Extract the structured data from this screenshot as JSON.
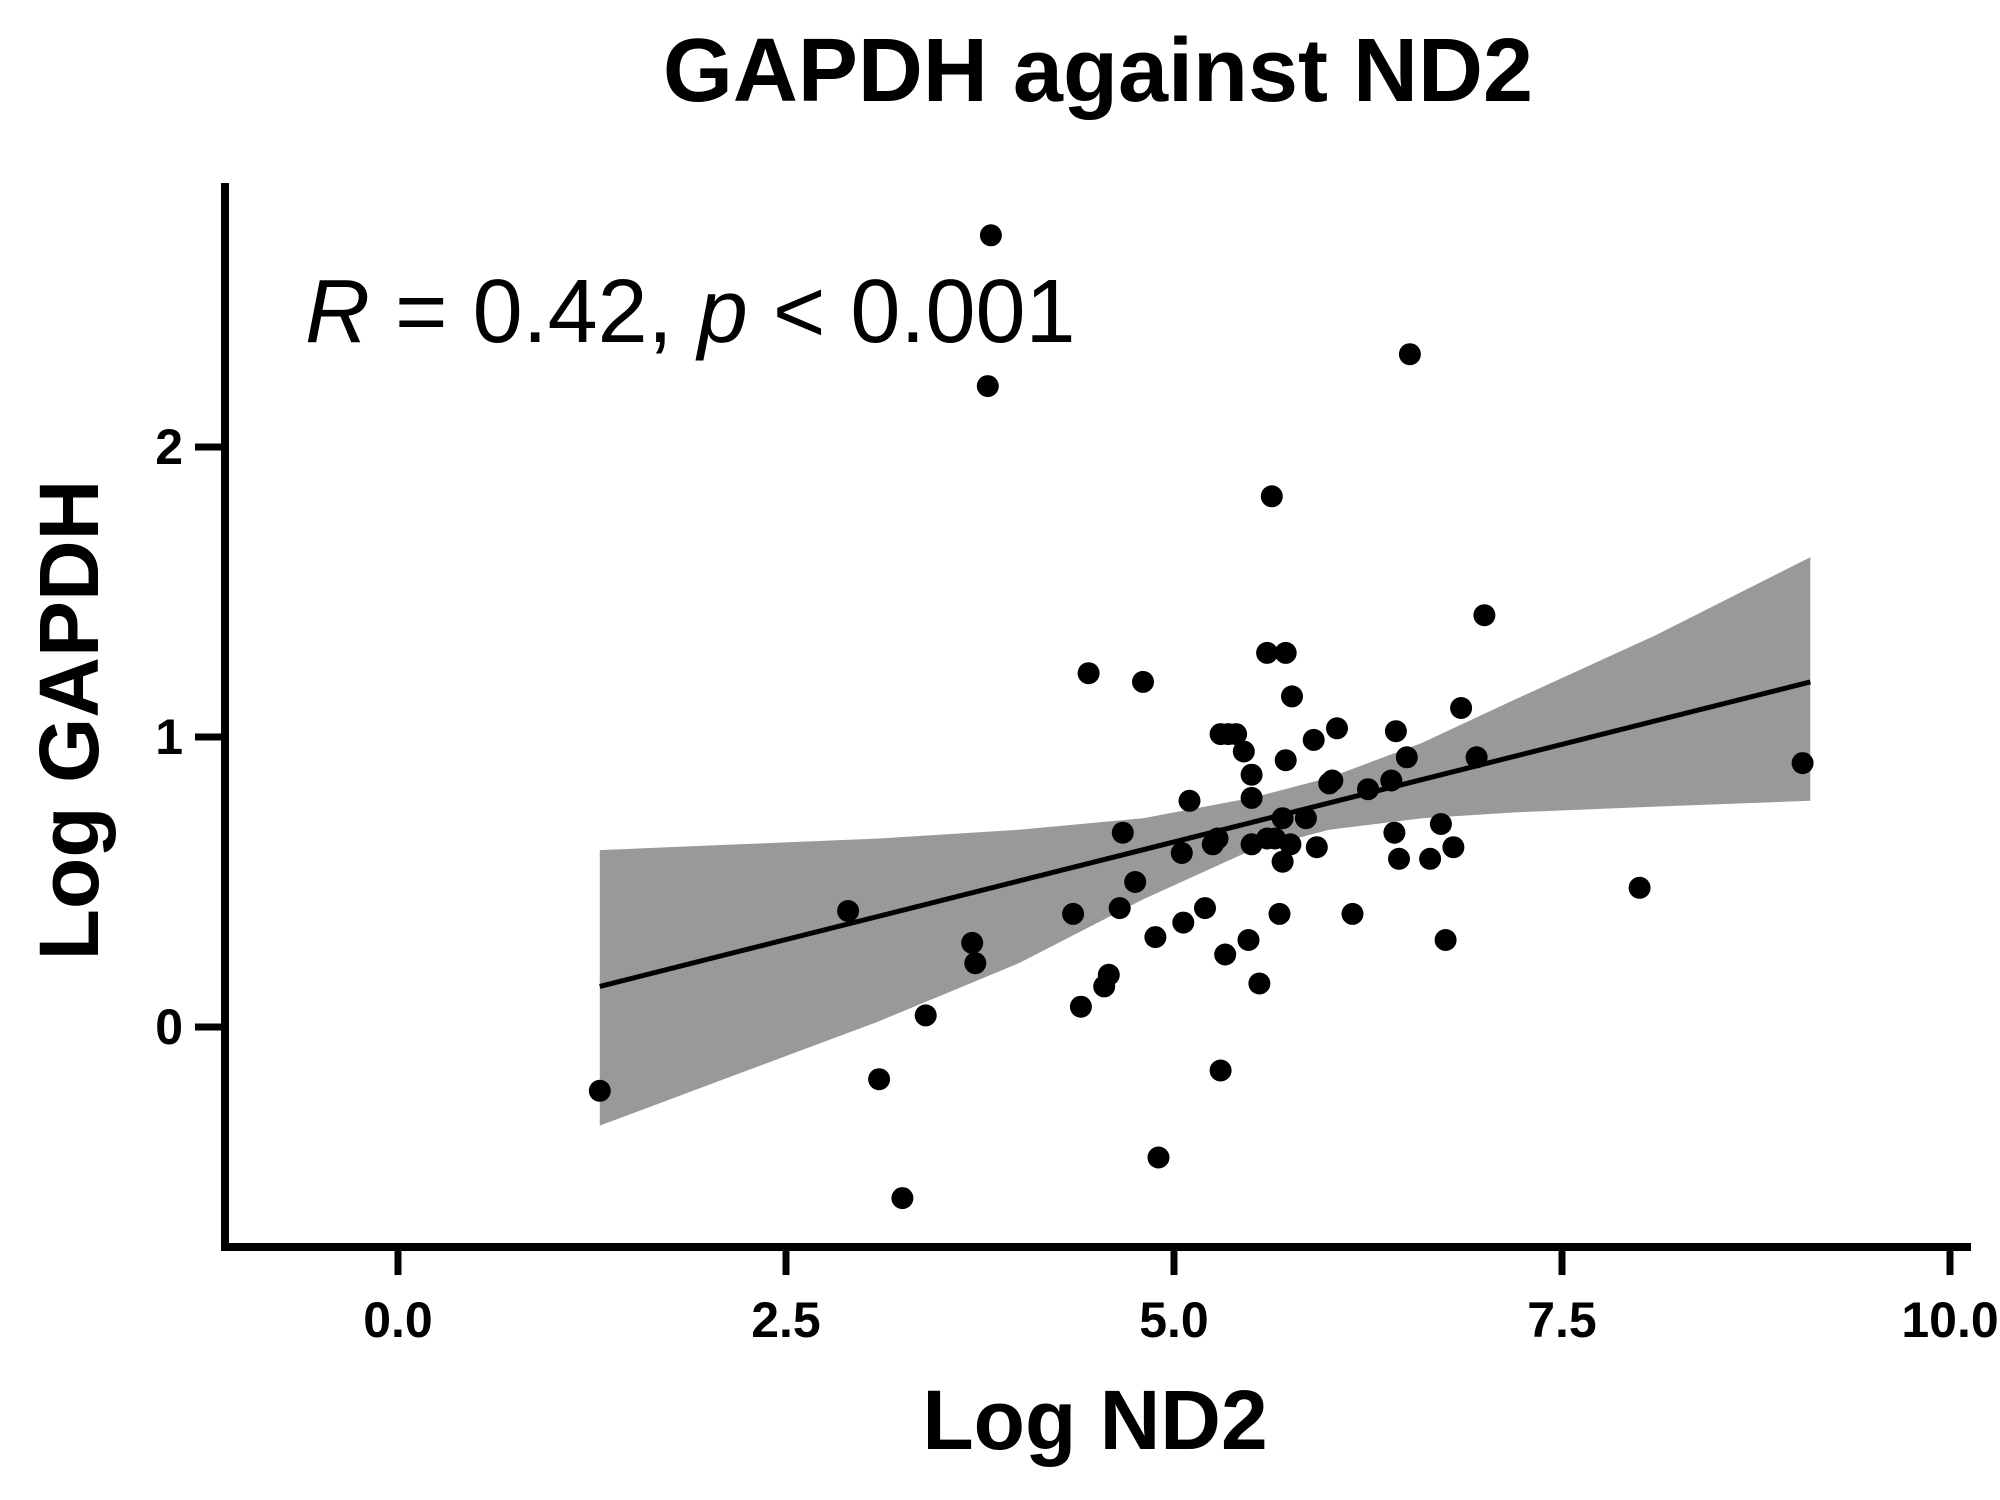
{
  "chart_data": {
    "type": "scatter",
    "title": "GAPDH against ND2",
    "xlabel": "Log ND2",
    "ylabel": "Log GAPDH",
    "xlim": [
      -1.1,
      10.2
    ],
    "ylim": [
      -0.76,
      2.9
    ],
    "x_ticks": [
      0.0,
      2.5,
      5.0,
      7.5,
      10.0
    ],
    "x_tick_labels": [
      "0.0",
      "2.5",
      "5.0",
      "7.5",
      "10.0"
    ],
    "y_ticks": [
      0,
      1,
      2
    ],
    "y_tick_labels": [
      "0",
      "1",
      "2"
    ],
    "grid": false,
    "annotation": {
      "r_symbol": "R",
      "r_text": " = 0.42, ",
      "p_symbol": "p",
      "p_text": " < 0.001"
    },
    "colors": {
      "points": "#000000",
      "fit_line": "#000000",
      "confidence_band": "#999999"
    },
    "fit": {
      "x": [
        1.3,
        9.1
      ],
      "y": [
        0.14,
        1.19
      ]
    },
    "confidence_band": {
      "x": [
        1.3,
        2.2,
        3.1,
        4.0,
        4.8,
        5.5,
        6.0,
        6.6,
        7.2,
        8.1,
        9.1
      ],
      "upper": [
        0.61,
        0.63,
        0.65,
        0.68,
        0.72,
        0.79,
        0.86,
        0.98,
        1.13,
        1.35,
        1.62
      ],
      "lower": [
        -0.34,
        -0.16,
        0.02,
        0.22,
        0.44,
        0.61,
        0.68,
        0.72,
        0.74,
        0.76,
        0.78
      ]
    },
    "points": {
      "x": [
        1.3,
        2.9,
        3.1,
        3.25,
        3.4,
        3.7,
        3.72,
        3.8,
        3.82,
        4.35,
        4.4,
        4.45,
        4.55,
        4.58,
        4.65,
        4.67,
        4.75,
        4.8,
        4.88,
        4.9,
        5.05,
        5.06,
        5.1,
        5.2,
        5.25,
        5.28,
        5.3,
        5.3,
        5.33,
        5.35,
        5.4,
        5.45,
        5.48,
        5.5,
        5.5,
        5.5,
        5.55,
        5.6,
        5.6,
        5.63,
        5.65,
        5.68,
        5.7,
        5.7,
        5.72,
        5.72,
        5.75,
        5.76,
        5.85,
        5.9,
        5.92,
        6.0,
        6.02,
        6.05,
        6.15,
        6.25,
        6.4,
        6.42,
        6.43,
        6.45,
        6.5,
        6.52,
        6.65,
        6.72,
        6.75,
        6.8,
        6.85,
        6.95,
        7.0,
        8.0,
        9.05
      ],
      "y": [
        -0.22,
        0.4,
        -0.18,
        -0.59,
        0.04,
        0.29,
        0.22,
        2.21,
        2.73,
        0.39,
        0.07,
        1.22,
        0.14,
        0.18,
        0.41,
        0.67,
        0.5,
        1.19,
        0.31,
        -0.45,
        0.6,
        0.36,
        0.78,
        0.41,
        0.63,
        0.65,
        1.01,
        -0.15,
        0.25,
        1.01,
        1.01,
        0.95,
        0.3,
        0.79,
        0.87,
        0.63,
        0.15,
        0.65,
        1.29,
        1.83,
        0.65,
        0.39,
        0.57,
        0.72,
        0.92,
        1.29,
        0.63,
        1.14,
        0.72,
        0.99,
        0.62,
        0.84,
        0.85,
        1.03,
        0.39,
        0.82,
        0.85,
        0.67,
        1.02,
        0.58,
        0.93,
        2.32,
        0.58,
        0.7,
        0.3,
        0.62,
        1.1,
        0.93,
        1.42,
        0.48,
        0.91
      ]
    }
  }
}
